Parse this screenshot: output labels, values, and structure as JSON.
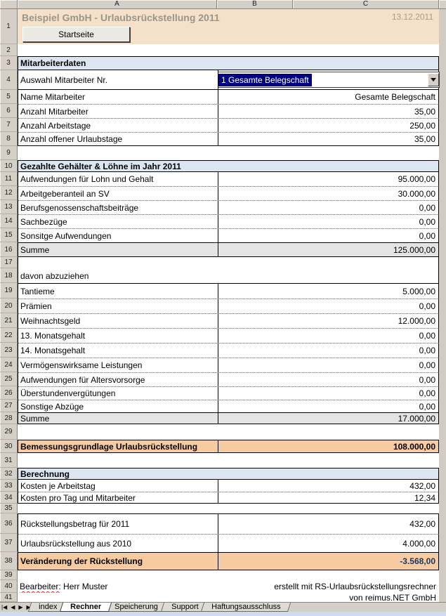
{
  "app": {
    "columns": [
      "A",
      "B",
      "C"
    ],
    "title": "Beispiel GmbH - Urlaubsrückstellung 2011",
    "date": "13.12.2011",
    "home_button": "Startseite"
  },
  "colors": {
    "title_bg": "#f5e1c9",
    "section_bg": "#dce6f1",
    "sum_bg": "#e4e4e4",
    "highlight_bg": "#f7cba2",
    "selection_bg": "#000080",
    "result_text": "#17375d"
  },
  "rows": [
    {
      "num": 1,
      "kind": "title"
    },
    {
      "num": 2,
      "kind": "blank"
    },
    {
      "num": 3,
      "kind": "section",
      "label": "Mitarbeiterdaten"
    },
    {
      "num": 4,
      "kind": "dropdown",
      "label": "Auswahl Mitarbeiter Nr.",
      "value": "1 Gesamte Belegschaft"
    },
    {
      "num": 5,
      "kind": "data",
      "label": "Name Mitarbeiter",
      "value": "Gesamte Belegschaft"
    },
    {
      "num": 6,
      "kind": "data",
      "label": "Anzahl Mitarbeiter",
      "value": "35,00"
    },
    {
      "num": 7,
      "kind": "data",
      "label": "Anzahl Arbeitstage",
      "value": "250,00"
    },
    {
      "num": 8,
      "kind": "data",
      "label": "Anzahl offener Urlaubstage",
      "value": "35,00"
    },
    {
      "num": 9,
      "kind": "blank"
    },
    {
      "num": 10,
      "kind": "section",
      "label": "Gezahlte Gehälter & Löhne im Jahr 2011"
    },
    {
      "num": 11,
      "kind": "data",
      "label": "Aufwendungen für Lohn und Gehalt",
      "value": "95.000,00"
    },
    {
      "num": 12,
      "kind": "data",
      "label": "Arbeitgeberanteil an SV",
      "value": "30.000,00"
    },
    {
      "num": 13,
      "kind": "data",
      "label": "Berufsgenossenschaftsbeiträge",
      "value": "0,00"
    },
    {
      "num": 14,
      "kind": "data",
      "label": "Sachbezüge",
      "value": "0,00"
    },
    {
      "num": 15,
      "kind": "data",
      "label": "Sonsitge Aufwendungen",
      "value": "0,00"
    },
    {
      "num": 16,
      "kind": "sum",
      "label": "Summe",
      "value": "125.000,00"
    },
    {
      "num": 17,
      "kind": "gap"
    },
    {
      "num": 18,
      "kind": "note",
      "label": "davon abzuziehen"
    },
    {
      "num": 19,
      "kind": "data",
      "label": "Tantieme",
      "value": "5.000,00"
    },
    {
      "num": 20,
      "kind": "data",
      "label": "Prämien",
      "value": "0,00"
    },
    {
      "num": 21,
      "kind": "data",
      "label": "Weihnachtsgeld",
      "value": "12.000,00"
    },
    {
      "num": 22,
      "kind": "data",
      "label": "13. Monatsgehalt",
      "value": "0,00"
    },
    {
      "num": 23,
      "kind": "data",
      "label": "14. Monatsgehalt",
      "value": "0,00"
    },
    {
      "num": 24,
      "kind": "data",
      "label": "Vermögenswirksame Leistungen",
      "value": "0,00"
    },
    {
      "num": 25,
      "kind": "data",
      "label": "Aufwendungen für Altersvorsorge",
      "value": "0,00"
    },
    {
      "num": 26,
      "kind": "data",
      "label": "Überstundenvergütungen",
      "value": "0,00"
    },
    {
      "num": 27,
      "kind": "data",
      "label": "Sonstige Abzüge",
      "value": "0,00"
    },
    {
      "num": 28,
      "kind": "sum",
      "label": "Summe",
      "value": "17.000,00"
    },
    {
      "num": 29,
      "kind": "blank"
    },
    {
      "num": 30,
      "kind": "highlight",
      "label": "Bemessungsgrundlage Urlaubsrückstellung",
      "value": "108.000,00"
    },
    {
      "num": 31,
      "kind": "blank"
    },
    {
      "num": 32,
      "kind": "section",
      "label": "Berechnung"
    },
    {
      "num": 33,
      "kind": "data",
      "label": "Kosten je Arbeitstag",
      "value": "432,00"
    },
    {
      "num": 34,
      "kind": "data",
      "label": "Kosten pro Tag und Mitarbeiter",
      "value": "12,34"
    },
    {
      "num": 35,
      "kind": "blank"
    },
    {
      "num": 36,
      "kind": "data",
      "label": "Rückstellungsbetrag für 2011",
      "value": "432,00"
    },
    {
      "num": 37,
      "kind": "data",
      "label": "Urlaubsrückstellung aus 2010",
      "value": "4.000,00"
    },
    {
      "num": 38,
      "kind": "highlight",
      "label": "Veränderung der Rückstellung",
      "value": "-3.568,00",
      "navy": true
    },
    {
      "num": 39,
      "kind": "blank"
    },
    {
      "num": 40,
      "kind": "footer",
      "left_word": "Bearbeiter:",
      "left_rest": " Herr Muster",
      "right": "erstellt mit RS-Urlaubsrückstellungsrechner"
    },
    {
      "num": 41,
      "kind": "footer",
      "right": "von reimus.NET GmbH"
    }
  ],
  "tabs": {
    "nav": [
      "|◀",
      "◀",
      "▶",
      "▶|"
    ],
    "items": [
      "index",
      "Rechner",
      "Speicherung",
      "Support",
      "Haftungsausschluss"
    ],
    "active": "Rechner"
  }
}
